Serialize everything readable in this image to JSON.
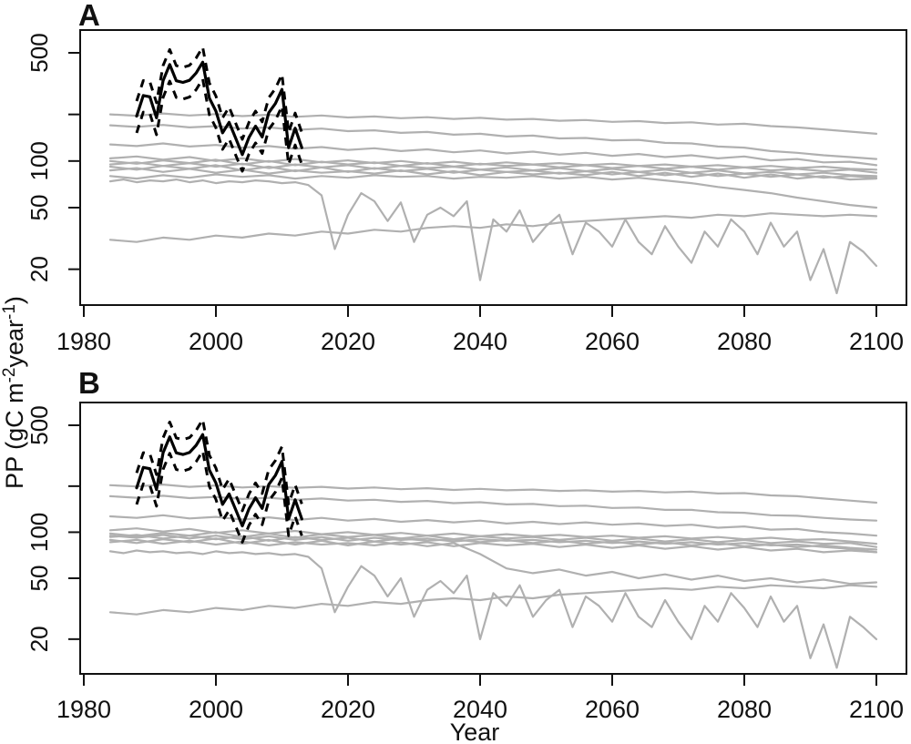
{
  "chart_data": {
    "type": "line",
    "title": "",
    "xlabel": "Year",
    "ylabel": "PP (gC m-2 year-1)",
    "ylabel_parts": [
      {
        "t": "PP (gC m",
        "sup": false
      },
      {
        "t": "-2",
        "sup": true
      },
      {
        "t": "year",
        "sup": false
      },
      {
        "t": "-1",
        "sup": true
      },
      {
        "t": ")",
        "sup": false
      }
    ],
    "x_ticks": [
      1980,
      2000,
      2020,
      2040,
      2060,
      2080,
      2100
    ],
    "y_ticks": [
      {
        "value": 500,
        "label": "500"
      },
      {
        "value": 200,
        "label": ""
      },
      {
        "value": 100,
        "label": "100"
      },
      {
        "value": 50,
        "label": "50"
      },
      {
        "value": 20,
        "label": "20"
      }
    ],
    "y_scale": "log",
    "xlim": [
      1979.4,
      2104.6
    ],
    "ylim": [
      12,
      700
    ],
    "legend": "none",
    "grid": false,
    "colors": {
      "models": "#b0b0b0",
      "observations": "#000000",
      "axis": "#111111"
    },
    "observations": {
      "description": "black solid observed PP with dashed upper/lower uncertainty bounds, shown identically in both panels",
      "start_year": 1988,
      "step": 1,
      "mean": [
        195,
        265,
        260,
        190,
        330,
        420,
        330,
        322,
        332,
        370,
        435,
        255,
        210,
        152,
        178,
        140,
        110,
        142,
        168,
        143,
        205,
        235,
        290,
        122,
        163,
        122
      ],
      "upper": [
        244,
        331,
        325,
        238,
        413,
        525,
        413,
        403,
        415,
        463,
        544,
        319,
        263,
        190,
        223,
        175,
        138,
        178,
        210,
        179,
        256,
        294,
        363,
        153,
        204,
        153
      ],
      "lower": [
        152,
        207,
        203,
        148,
        257,
        328,
        257,
        251,
        259,
        289,
        339,
        199,
        164,
        119,
        139,
        109,
        86,
        111,
        131,
        112,
        160,
        183,
        226,
        95,
        127,
        95
      ]
    },
    "panels": [
      {
        "label": "A",
        "models": [
          {
            "start": 1984,
            "step": 4,
            "values": [
              200,
              196,
              203,
              197,
              201,
              195,
              199,
              193,
              197,
              191,
              194,
              189,
              192,
              187,
              190,
              185,
              187,
              182,
              184,
              179,
              181,
              176,
              178,
              172,
              174,
              168,
              165,
              160,
              155,
              150
            ]
          },
          {
            "start": 1984,
            "step": 4,
            "values": [
              170,
              166,
              171,
              165,
              168,
              162,
              165,
              159,
              162,
              156,
              158,
              152,
              154,
              148,
              150,
              144,
              146,
              140,
              141,
              136,
              137,
              131,
              130,
              124,
              122,
              116,
              113,
              109,
              106,
              103
            ]
          },
          {
            "start": 1984,
            "step": 4,
            "values": [
              128,
              125,
              130,
              124,
              127,
              122,
              125,
              120,
              123,
              118,
              121,
              116,
              119,
              114,
              117,
              112,
              115,
              110,
              113,
              108,
              111,
              106,
              109,
              104,
              107,
              101,
              103,
              98,
              99,
              94
            ]
          },
          {
            "start": 1984,
            "step": 4,
            "values": [
              104,
              107,
              102,
              106,
              100,
              104,
              99,
              103,
              98,
              101,
              97,
              100,
              96,
              99,
              95,
              98,
              95,
              97,
              94,
              96,
              93,
              95,
              92,
              94,
              91,
              93,
              90,
              92,
              89,
              88
            ]
          },
          {
            "start": 1984,
            "step": 4,
            "values": [
              100,
              96,
              101,
              97,
              102,
              95,
              100,
              94,
              99,
              95,
              98,
              93,
              97,
              92,
              96,
              93,
              95,
              91,
              94,
              90,
              93,
              89,
              92,
              88,
              91,
              87,
              89,
              86,
              88,
              84
            ]
          },
          {
            "start": 1984,
            "step": 4,
            "values": [
              95,
              98,
              93,
              97,
              92,
              96,
              90,
              95,
              91,
              94,
              89,
              93,
              90,
              92,
              88,
              91,
              87,
              90,
              86,
              89,
              85,
              88,
              84,
              87,
              83,
              85,
              82,
              84,
              81,
              80
            ]
          },
          {
            "start": 1984,
            "step": 4,
            "values": [
              92,
              88,
              93,
              89,
              94,
              87,
              92,
              86,
              91,
              85,
              90,
              86,
              89,
              84,
              88,
              85,
              87,
              83,
              86,
              82,
              85,
              81,
              84,
              80,
              83,
              79,
              82,
              78,
              80,
              78
            ]
          },
          {
            "start": 1984,
            "step": 4,
            "values": [
              87,
              90,
              85,
              89,
              84,
              88,
              83,
              87,
              84,
              86,
              83,
              87,
              82,
              86,
              81,
              85,
              82,
              84,
              81,
              85,
              80,
              84,
              79,
              83,
              78,
              82,
              77,
              80,
              76,
              77
            ]
          },
          {
            "start": 1984,
            "step": 4,
            "values": [
              80,
              77,
              81,
              78,
              82,
              79,
              81,
              77,
              80,
              78,
              81,
              79,
              80,
              77,
              79,
              78,
              80,
              77,
              79,
              76,
              78,
              75,
              72,
              68,
              65,
              62,
              58,
              55,
              52,
              50
            ]
          },
          {
            "start": 1984,
            "step": 2,
            "values": [
              74,
              76,
              73,
              75,
              74,
              76,
              73,
              75,
              72,
              74,
              73,
              75,
              74,
              72,
              73,
              70,
              60,
              27,
              45,
              62,
              55,
              41,
              54,
              30,
              45,
              50,
              44,
              55,
              17,
              42,
              35,
              48,
              30,
              38,
              45,
              25,
              40,
              35,
              28,
              42,
              30,
              25,
              38,
              28,
              22,
              35,
              28,
              42,
              35,
              25,
              40,
              28,
              35,
              17,
              27,
              14,
              30,
              26,
              21
            ]
          },
          {
            "start": 1984,
            "step": 4,
            "values": [
              31,
              30,
              32,
              31,
              33,
              32,
              34,
              33,
              35,
              34,
              36,
              35,
              37,
              38,
              37,
              39,
              38,
              40,
              41,
              42,
              43,
              44,
              43,
              45,
              44,
              46,
              45,
              44,
              45,
              44
            ]
          }
        ]
      },
      {
        "label": "B",
        "models": [
          {
            "start": 1984,
            "step": 4,
            "values": [
              203,
              199,
              205,
              198,
              202,
              196,
              200,
              195,
              198,
              193,
              196,
              191,
              194,
              189,
              192,
              188,
              190,
              186,
              188,
              184,
              186,
              182,
              184,
              179,
              180,
              174,
              172,
              166,
              161,
              156
            ]
          },
          {
            "start": 1984,
            "step": 4,
            "values": [
              172,
              168,
              173,
              167,
              170,
              165,
              168,
              163,
              166,
              161,
              163,
              158,
              160,
              155,
              157,
              152,
              153,
              148,
              149,
              144,
              145,
              140,
              140,
              135,
              134,
              129,
              128,
              124,
              121,
              119
            ]
          },
          {
            "start": 1984,
            "step": 4,
            "values": [
              127,
              124,
              129,
              123,
              126,
              121,
              125,
              120,
              124,
              119,
              122,
              117,
              120,
              116,
              119,
              114,
              117,
              113,
              116,
              112,
              114,
              110,
              112,
              107,
              109,
              104,
              105,
              100,
              98,
              95
            ]
          },
          {
            "start": 1984,
            "step": 4,
            "values": [
              103,
              106,
              101,
              105,
              99,
              103,
              98,
              102,
              97,
              100,
              96,
              99,
              95,
              98,
              94,
              97,
              94,
              96,
              93,
              95,
              92,
              94,
              91,
              93,
              90,
              92,
              89,
              90,
              87,
              84
            ]
          },
          {
            "start": 1984,
            "step": 4,
            "values": [
              98,
              94,
              99,
              95,
              100,
              93,
              98,
              92,
              97,
              93,
              96,
              91,
              95,
              90,
              94,
              91,
              93,
              89,
              92,
              88,
              91,
              87,
              90,
              86,
              89,
              85,
              87,
              84,
              85,
              80
            ]
          },
          {
            "start": 1984,
            "step": 4,
            "values": [
              93,
              96,
              91,
              95,
              90,
              94,
              88,
              93,
              89,
              92,
              87,
              91,
              88,
              90,
              86,
              89,
              85,
              88,
              84,
              87,
              83,
              86,
              82,
              85,
              81,
              83,
              80,
              82,
              79,
              77
            ]
          },
          {
            "start": 1984,
            "step": 4,
            "values": [
              89,
              85,
              90,
              86,
              91,
              84,
              89,
              83,
              88,
              82,
              87,
              83,
              86,
              81,
              85,
              82,
              84,
              80,
              83,
              79,
              82,
              78,
              81,
              77,
              80,
              76,
              78,
              74,
              76,
              74
            ]
          },
          {
            "start": 1984,
            "step": 4,
            "values": [
              86,
              89,
              84,
              88,
              83,
              87,
              82,
              86,
              83,
              85,
              82,
              86,
              81,
              85,
              72,
              58,
              54,
              57,
              52,
              55,
              50,
              53,
              49,
              52,
              48,
              50,
              47,
              49,
              46,
              47
            ]
          },
          {
            "start": 1984,
            "step": 2,
            "values": [
              75,
              73,
              76,
              74,
              75,
              73,
              74,
              72,
              75,
              73,
              74,
              72,
              73,
              71,
              72,
              69,
              58,
              30,
              44,
              60,
              52,
              38,
              50,
              28,
              42,
              48,
              40,
              52,
              20,
              40,
              33,
              45,
              28,
              36,
              42,
              24,
              38,
              33,
              26,
              40,
              28,
              24,
              36,
              26,
              20,
              33,
              26,
              40,
              32,
              24,
              38,
              26,
              33,
              15,
              25,
              13,
              28,
              24,
              20
            ]
          },
          {
            "start": 1984,
            "step": 4,
            "values": [
              30,
              29,
              31,
              30,
              32,
              31,
              33,
              32,
              34,
              33,
              35,
              34,
              36,
              37,
              36,
              38,
              37,
              39,
              40,
              41,
              42,
              43,
              42,
              44,
              43,
              45,
              44,
              43,
              45,
              44
            ]
          },
          {
            "start": 1984,
            "step": 4,
            "values": [
              95,
              92,
              96,
              91,
              95,
              90,
              94,
              89,
              93,
              88,
              92,
              89,
              91,
              87,
              90,
              88,
              89,
              86,
              88,
              85,
              87,
              84,
              86,
              83,
              85,
              82,
              83,
              80,
              78,
              74
            ]
          }
        ]
      }
    ]
  }
}
